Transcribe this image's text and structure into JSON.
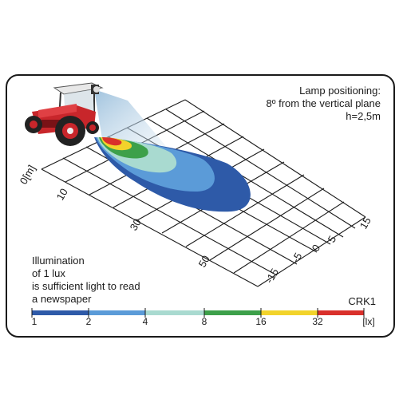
{
  "lamp_note": {
    "line1": "Lamp positioning:",
    "line2": "8º from the vertical plane",
    "line3": "h=2,5m"
  },
  "illumination_note": {
    "line1": "Illumination",
    "line2": "of 1 lux",
    "line3": "is sufficient light to read",
    "line4": "a newspaper"
  },
  "model": "CRK1",
  "distance_axis": {
    "labels": [
      "0[m]",
      "10",
      "30",
      "50"
    ]
  },
  "lateral_axis": {
    "labels": [
      "15",
      "5",
      "0",
      "-5",
      "-15"
    ]
  },
  "scale": {
    "labels": [
      "1",
      "2",
      "4",
      "8",
      "16",
      "32",
      "[lx]"
    ],
    "colors": [
      "#2e5aa8",
      "#5b9bd8",
      "#a9dad0",
      "#3da04a",
      "#f2d32b",
      "#d9302b"
    ]
  },
  "contours": [
    {
      "lux": 1,
      "color": "#2e5aa8"
    },
    {
      "lux": 2,
      "color": "#5b9bd8"
    },
    {
      "lux": 4,
      "color": "#a9dad0"
    },
    {
      "lux": 8,
      "color": "#3da04a"
    },
    {
      "lux": 16,
      "color": "#f2d32b"
    },
    {
      "lux": 32,
      "color": "#d9302b"
    }
  ]
}
